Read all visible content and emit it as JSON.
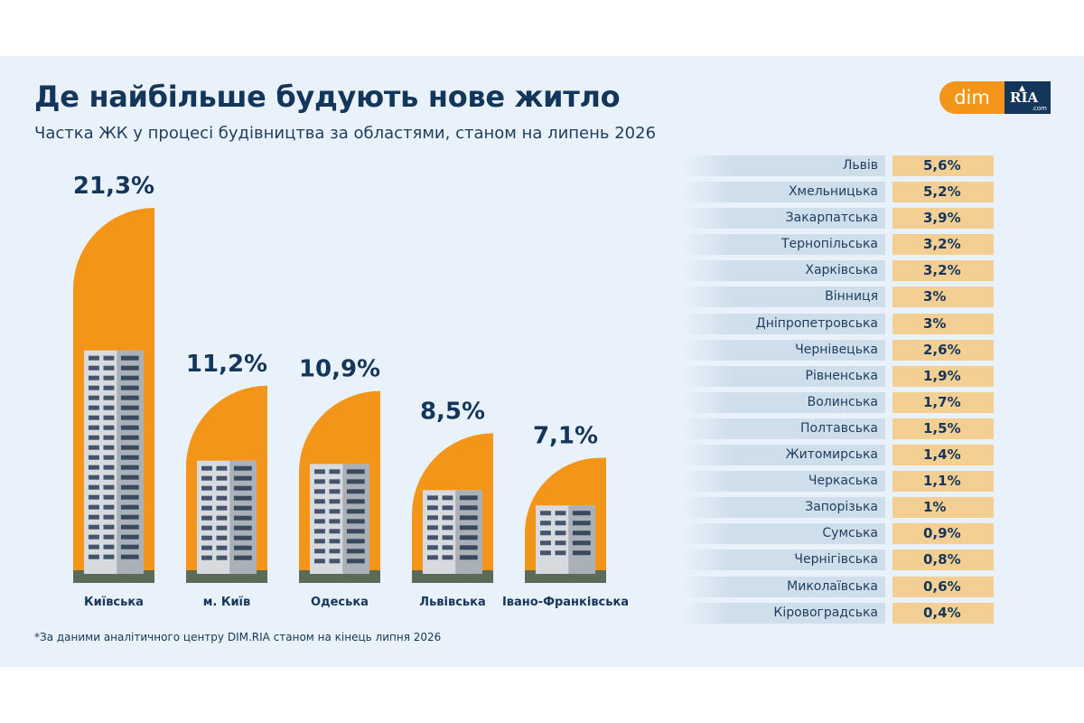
{
  "header": {
    "title": "Де найбільше будують нове житло",
    "subtitle": "Частка ЖК у процесі будівництва за областями, станом на липень 2026"
  },
  "logo": {
    "left": "dim",
    "right": "RIA",
    "suffix": ".com"
  },
  "footnote": "*За даними аналітичного центру DIM.RIA станом на кінець липня 2026",
  "colors": {
    "accent": "#f39518",
    "navy": "#14365a",
    "background": "#e9f2fa",
    "value_cell": "#f4cf94",
    "label_cell": "#cfdeeb"
  },
  "chart_data": [
    {
      "type": "bar",
      "categories": [
        "Київська",
        "м. Київ",
        "Одеська",
        "Львівська",
        "Івано-Франківська"
      ],
      "values": [
        21.3,
        11.2,
        10.9,
        8.5,
        7.1
      ],
      "value_labels": [
        "21,3%",
        "11,2%",
        "10,9%",
        "8,5%",
        "7,1%"
      ],
      "unit": "%",
      "icons": [
        "building-photo-icon",
        "building-photo-icon",
        "building-photo-icon",
        "building-photo-icon",
        "building-photo-icon"
      ]
    },
    {
      "type": "table",
      "rows": [
        {
          "region": "Львів",
          "value": 5.6,
          "label": "5,6%"
        },
        {
          "region": "Хмельницька",
          "value": 5.2,
          "label": "5,2%"
        },
        {
          "region": "Закарпатська",
          "value": 3.9,
          "label": "3,9%"
        },
        {
          "region": "Тернопільська",
          "value": 3.2,
          "label": "3,2%"
        },
        {
          "region": "Харківська",
          "value": 3.2,
          "label": "3,2%"
        },
        {
          "region": "Вінниця",
          "value": 3,
          "label": "3%"
        },
        {
          "region": "Дніпропетровська",
          "value": 3,
          "label": "3%"
        },
        {
          "region": "Чернівецька",
          "value": 2.6,
          "label": "2,6%"
        },
        {
          "region": "Рівненська",
          "value": 1.9,
          "label": "1,9%"
        },
        {
          "region": "Волинська",
          "value": 1.7,
          "label": "1,7%"
        },
        {
          "region": "Полтавська",
          "value": 1.5,
          "label": "1,5%"
        },
        {
          "region": "Житомирська",
          "value": 1.4,
          "label": "1,4%"
        },
        {
          "region": "Черкаська",
          "value": 1.1,
          "label": "1,1%"
        },
        {
          "region": "Запорізька",
          "value": 1,
          "label": "1%"
        },
        {
          "region": "Сумська",
          "value": 0.9,
          "label": "0,9%"
        },
        {
          "region": "Чернігівська",
          "value": 0.8,
          "label": "0,8%"
        },
        {
          "region": "Миколаївська",
          "value": 0.6,
          "label": "0,6%"
        },
        {
          "region": "Кіровоградська",
          "value": 0.4,
          "label": "0,4%"
        }
      ]
    }
  ]
}
